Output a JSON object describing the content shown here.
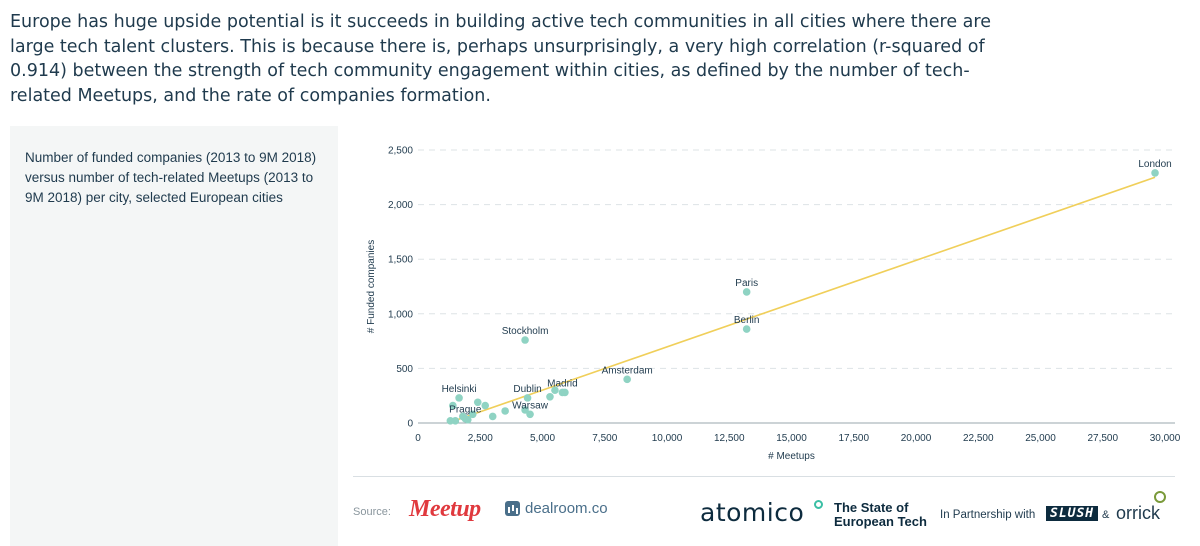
{
  "intro": {
    "text": "Europe has huge upside potential is it succeeds in building active tech communities in all cities where there are large tech talent clusters. This is because there is, perhaps unsurprisingly, a very high correlation (r-squared of 0.914) between the strength of tech community engagement within cities, as defined by the number of tech-related Meetups, and the rate of companies formation."
  },
  "side_panel": {
    "subtitle": "Number of funded companies (2013 to 9M 2018) versus number of tech-related Meetups (2013 to 9M 2018) per city, selected European cities"
  },
  "chart_data": {
    "type": "scatter",
    "xlabel": "# Meetups",
    "ylabel": "# Funded companies",
    "xlim": [
      0,
      30000
    ],
    "ylim": [
      0,
      2500
    ],
    "xticks": [
      0,
      2500,
      5000,
      7500,
      10000,
      12500,
      15000,
      17500,
      20000,
      22500,
      25000,
      27500,
      30000
    ],
    "yticks": [
      0,
      500,
      1000,
      1500,
      2000,
      2500
    ],
    "grid": "horizontal dashed",
    "point_color": "#8fd3c3",
    "trendline_color": "#f0cf5a",
    "trendline": {
      "x": [
        1200,
        29600
      ],
      "y": [
        0,
        2250
      ]
    },
    "points": [
      {
        "label": "London",
        "x": 29600,
        "y": 2290
      },
      {
        "label": "Paris",
        "x": 13200,
        "y": 1200
      },
      {
        "label": "Berlin",
        "x": 13200,
        "y": 860
      },
      {
        "label": "Stockholm",
        "x": 4300,
        "y": 760
      },
      {
        "label": "Amsterdam",
        "x": 8400,
        "y": 400
      },
      {
        "label": "Madrid",
        "x": 5800,
        "y": 280
      },
      {
        "label": "Dublin",
        "x": 4400,
        "y": 230
      },
      {
        "label": "Helsinki",
        "x": 1650,
        "y": 230
      },
      {
        "label": "Warsaw",
        "x": 4500,
        "y": 80
      },
      {
        "label": "Prague",
        "x": 1900,
        "y": 40
      },
      {
        "label": "",
        "x": 5500,
        "y": 300
      },
      {
        "label": "",
        "x": 5300,
        "y": 240
      },
      {
        "label": "",
        "x": 5900,
        "y": 280
      },
      {
        "label": "",
        "x": 4300,
        "y": 120
      },
      {
        "label": "",
        "x": 3500,
        "y": 110
      },
      {
        "label": "",
        "x": 3000,
        "y": 60
      },
      {
        "label": "",
        "x": 2700,
        "y": 160
      },
      {
        "label": "",
        "x": 2400,
        "y": 190
      },
      {
        "label": "",
        "x": 2200,
        "y": 80
      },
      {
        "label": "",
        "x": 2000,
        "y": 30
      },
      {
        "label": "",
        "x": 1800,
        "y": 60
      },
      {
        "label": "",
        "x": 1500,
        "y": 20
      },
      {
        "label": "",
        "x": 1400,
        "y": 160
      },
      {
        "label": "",
        "x": 1300,
        "y": 20
      }
    ]
  },
  "footer": {
    "source_label": "Source:",
    "meetup_logo": "Meetup",
    "dealroom_logo": "dealroom.co",
    "atomico_logo": "atomico",
    "state_title": "The State of European Tech",
    "partner_label": "In Partnership with",
    "slush_logo": "SLUSH",
    "amp": "&",
    "orrick_logo": "orrick"
  }
}
